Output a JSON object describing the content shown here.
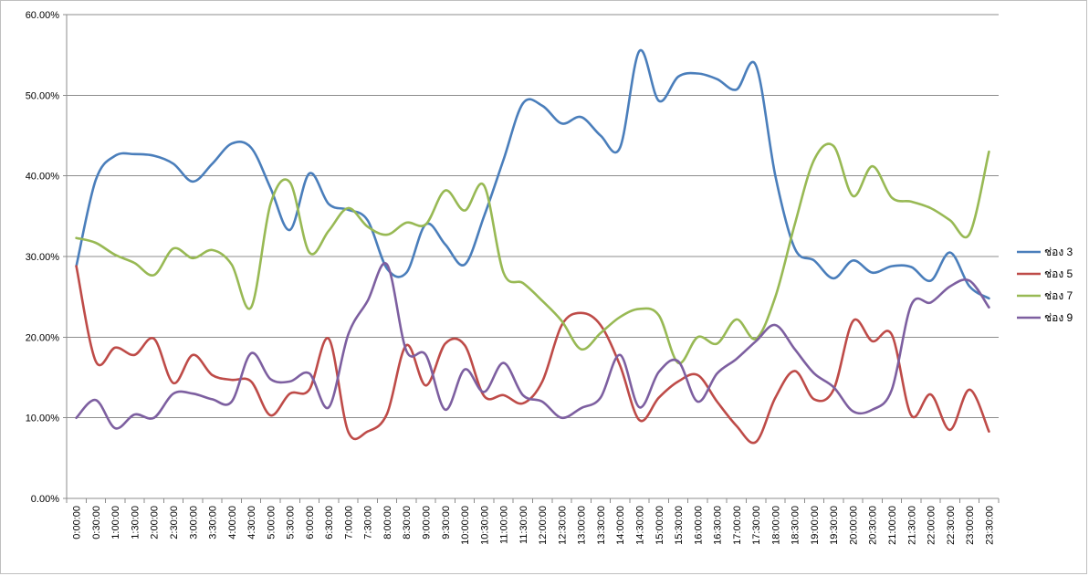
{
  "chart_data": {
    "type": "line",
    "title": "",
    "xlabel": "",
    "ylabel": "",
    "ylim": [
      0,
      60
    ],
    "y_ticks": [
      "0.00%",
      "10.00%",
      "20.00%",
      "30.00%",
      "40.00%",
      "50.00%",
      "60.00%"
    ],
    "y_tick_values": [
      0,
      10,
      20,
      30,
      40,
      50,
      60
    ],
    "grid": "horizontal",
    "legend_position": "right",
    "smooth": true,
    "categories": [
      "0:00:00",
      "0:30:00",
      "1:00:00",
      "1:30:00",
      "2:00:00",
      "2:30:00",
      "3:00:00",
      "3:30:00",
      "4:00:00",
      "4:30:00",
      "5:00:00",
      "5:30:00",
      "6:00:00",
      "6:30:00",
      "7:00:00",
      "7:30:00",
      "8:00:00",
      "8:30:00",
      "9:00:00",
      "9:30:00",
      "10:00:00",
      "10:30:00",
      "11:00:00",
      "11:30:00",
      "12:00:00",
      "12:30:00",
      "13:00:00",
      "13:30:00",
      "14:00:00",
      "14:30:00",
      "15:00:00",
      "15:30:00",
      "16:00:00",
      "16:30:00",
      "17:00:00",
      "17:30:00",
      "18:00:00",
      "18:30:00",
      "19:00:00",
      "19:30:00",
      "20:00:00",
      "20:30:00",
      "21:00:00",
      "21:30:00",
      "22:00:00",
      "22:30:00",
      "23:00:00",
      "23:30:00"
    ],
    "series": [
      {
        "name": "ช่อง 3",
        "color": "#4a7ebb",
        "values": [
          28.8,
          39.5,
          42.5,
          42.7,
          42.5,
          41.5,
          39.3,
          41.5,
          44.0,
          43.5,
          38.5,
          33.3,
          40.3,
          36.5,
          35.8,
          34.5,
          28.5,
          28.0,
          34.0,
          31.5,
          29.0,
          35.0,
          42.0,
          49.0,
          48.7,
          46.5,
          47.3,
          45.0,
          43.5,
          55.5,
          49.3,
          52.3,
          52.7,
          52.0,
          50.7,
          53.7,
          40.0,
          31.0,
          29.5,
          27.3,
          29.5,
          28.0,
          28.8,
          28.7,
          27.0,
          30.5,
          26.3,
          24.8
        ]
      },
      {
        "name": "ช่อง 5",
        "color": "#be4b48",
        "values": [
          28.8,
          17.0,
          18.7,
          17.8,
          19.8,
          14.3,
          17.8,
          15.3,
          14.7,
          14.5,
          10.3,
          13.0,
          13.5,
          19.8,
          8.3,
          8.3,
          10.5,
          19.0,
          14.0,
          19.2,
          19.0,
          12.7,
          12.8,
          11.8,
          14.5,
          21.5,
          23.0,
          21.5,
          16.5,
          9.7,
          12.5,
          14.5,
          15.3,
          12.0,
          9.0,
          7.0,
          12.5,
          15.8,
          12.3,
          13.5,
          22.0,
          19.5,
          20.3,
          10.3,
          12.9,
          8.5,
          13.5,
          8.3
        ]
      },
      {
        "name": "ช่อง 7",
        "color": "#98b954",
        "values": [
          32.3,
          31.7,
          30.2,
          29.2,
          27.7,
          31.0,
          29.8,
          30.8,
          29.0,
          23.7,
          36.5,
          39.2,
          30.5,
          33.2,
          36.0,
          33.7,
          32.7,
          34.2,
          34.0,
          38.2,
          35.7,
          38.8,
          28.0,
          26.7,
          24.5,
          22.0,
          18.5,
          20.5,
          22.5,
          23.5,
          22.7,
          16.8,
          20.0,
          19.2,
          22.2,
          19.8,
          25.0,
          34.0,
          42.0,
          43.7,
          37.5,
          41.2,
          37.3,
          36.8,
          36.0,
          34.5,
          32.8,
          43.0
        ]
      },
      {
        "name": "ช่อง 9",
        "color": "#7d5fa0",
        "values": [
          10.0,
          12.2,
          8.7,
          10.4,
          10.0,
          13.0,
          13.0,
          12.3,
          12.0,
          18.0,
          14.8,
          14.5,
          15.5,
          11.3,
          20.3,
          24.5,
          29.0,
          18.3,
          17.8,
          11.0,
          16.0,
          13.2,
          16.8,
          12.8,
          12.0,
          10.0,
          11.2,
          12.5,
          17.8,
          11.3,
          15.7,
          17.0,
          12.0,
          15.5,
          17.3,
          19.5,
          21.5,
          18.5,
          15.5,
          13.8,
          10.8,
          11.0,
          13.5,
          24.0,
          24.3,
          26.3,
          27.0,
          23.7
        ]
      }
    ]
  }
}
